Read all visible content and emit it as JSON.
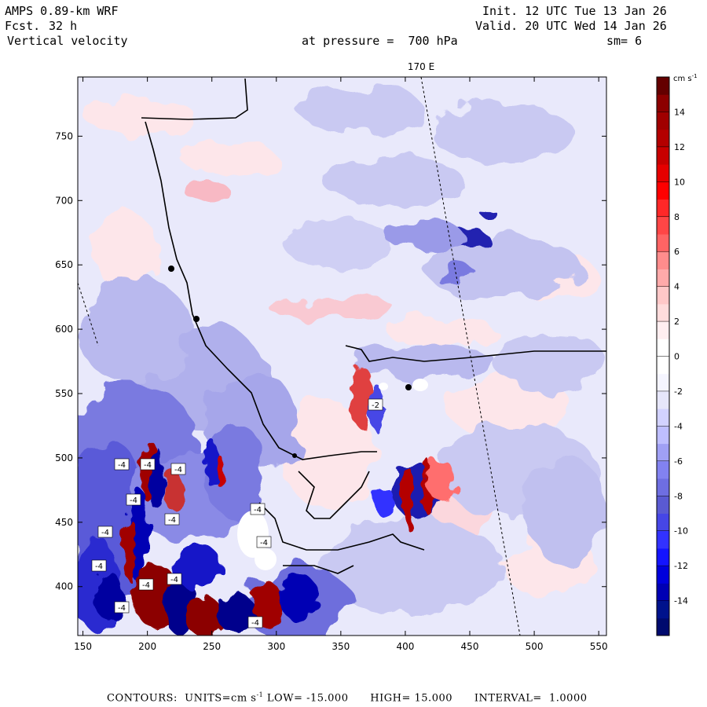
{
  "header": {
    "model": "AMPS 0.89-km WRF",
    "forecast_label": "Fcst.",
    "forecast_hours": "32 h",
    "field": "Vertical velocity",
    "init": "Init. 12 UTC Tue 13 Jan 26",
    "valid": "Valid. 20 UTC Wed 14 Jan 26",
    "pressure_text": "at pressure =  700 hPa",
    "smoothing": "sm= 6"
  },
  "chart_data": {
    "type": "heatmap",
    "title": "Vertical velocity at pressure = 700 hPa",
    "xlabel": "",
    "ylabel": "",
    "xlim": [
      146,
      556
    ],
    "ylim": [
      362,
      796
    ],
    "x_ticks": [
      150,
      200,
      250,
      300,
      350,
      400,
      450,
      500,
      550
    ],
    "y_ticks": [
      400,
      450,
      500,
      550,
      600,
      650,
      700,
      750
    ],
    "meridian_label": "170 E",
    "contour_labels": [
      "-4",
      "-4",
      "-4",
      "-4",
      "-4",
      "-4",
      "-4",
      "-4",
      "-4",
      "-4",
      "-4",
      "-4",
      "-4",
      "-2"
    ],
    "colorbar": {
      "units_label": "cm s",
      "units_exponent": "-1",
      "min": -16,
      "max": 16,
      "ticks": [
        14,
        12,
        10,
        8,
        6,
        4,
        2,
        0,
        -2,
        -4,
        -6,
        -8,
        -10,
        -12,
        -14
      ],
      "colors": [
        "#000a6e",
        "#00128c",
        "#0000b4",
        "#0000dc",
        "#1414ff",
        "#3232ff",
        "#4646e6",
        "#5a5ad2",
        "#6e6ee1",
        "#8282f0",
        "#a0a0f5",
        "#bebeff",
        "#d2d2ff",
        "#e6e6fa",
        "#f5f5ff",
        "#ffffff",
        "#ffffff",
        "#ffeef0",
        "#ffdcdc",
        "#ffc8c8",
        "#ffaaaa",
        "#ff8c8c",
        "#ff6464",
        "#ff4646",
        "#ff2828",
        "#ff0000",
        "#e60000",
        "#c80000",
        "#b40000",
        "#a00000",
        "#8c0000",
        "#640000"
      ]
    }
  },
  "footer": {
    "contours_label": "CONTOURS:",
    "units_label": "UNITS=cm s",
    "units_exponent": "-1",
    "low_label": "LOW=",
    "low_value": "-15.000",
    "high_label": "HIGH=",
    "high_value": "15.000",
    "interval_label": "INTERVAL=",
    "interval_value": "1.0000"
  }
}
